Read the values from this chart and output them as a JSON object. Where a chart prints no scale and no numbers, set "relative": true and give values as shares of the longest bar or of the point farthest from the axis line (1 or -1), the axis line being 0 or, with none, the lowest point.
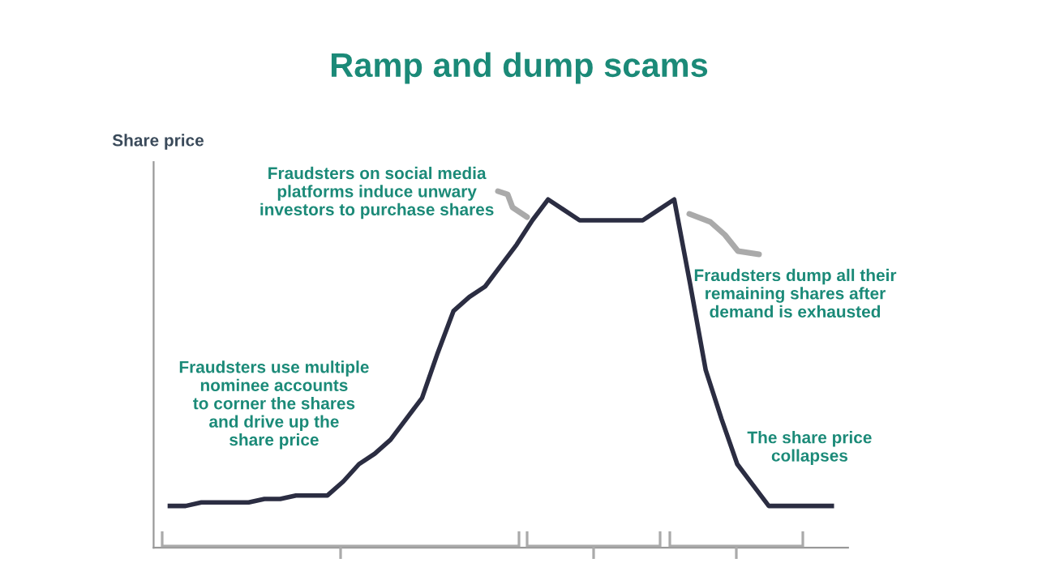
{
  "chart_data": {
    "type": "line",
    "relative": true,
    "title": "Ramp and dump scams",
    "ylabel": "Share price",
    "color": "#2b2d42",
    "categories": [
      null,
      null,
      null,
      null,
      null,
      null,
      null,
      null,
      null,
      null,
      null,
      null,
      null,
      null,
      null,
      null,
      null,
      null,
      null,
      null,
      null,
      null,
      null,
      null,
      null,
      null,
      null,
      null,
      null,
      null,
      null,
      null,
      null,
      null,
      null,
      null,
      null,
      null,
      null,
      null,
      null,
      null,
      null
    ],
    "values": [
      0.12,
      0.12,
      0.13,
      0.13,
      0.13,
      0.13,
      0.14,
      0.14,
      0.15,
      0.15,
      0.15,
      0.19,
      0.24,
      0.27,
      0.31,
      0.37,
      0.43,
      0.56,
      0.68,
      0.72,
      0.75,
      0.81,
      0.87,
      0.94,
      1,
      0.97,
      0.94,
      0.94,
      0.94,
      0.94,
      0.94,
      0.97,
      1,
      0.76,
      0.51,
      0.37,
      0.24,
      0.18,
      0.12,
      0.12,
      0.12,
      0.12,
      0.12
    ],
    "annotations": [
      "Fraudsters on social media\nplatforms induce unwary\ninvestors to purchase shares",
      "Fraudsters dump all their\nremaining shares after\ndemand is exhausted",
      "Fraudsters use multiple\nnominee accounts\nto corner the shares\nand drive up the\nshare price",
      "The share price\ncollapses"
    ],
    "legend": false
  }
}
